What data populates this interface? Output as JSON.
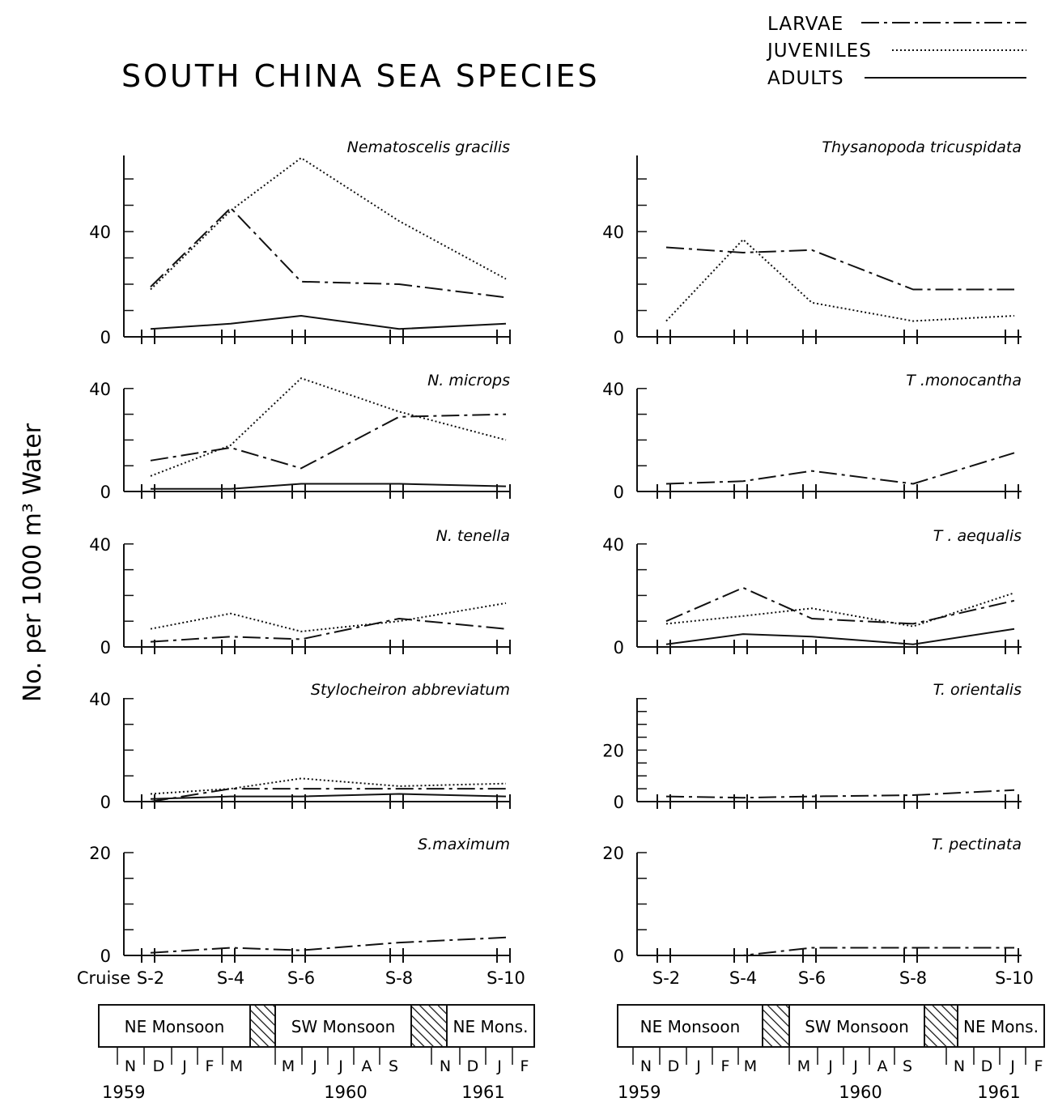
{
  "title": "SOUTH CHINA SEA SPECIES",
  "ylabel": "No. per 1000 m³ Water",
  "legend": [
    {
      "label": "LARVAE",
      "style": "dashdot"
    },
    {
      "label": "JUVENILES",
      "style": "dotted"
    },
    {
      "label": "ADULTS",
      "style": "solid"
    }
  ],
  "cruise_label": "Cruise",
  "cruises": [
    "S-2",
    "S-4",
    "S-6",
    "S-8",
    "S-10"
  ],
  "monsoon_bands": [
    {
      "label": "NE Monsoon",
      "hatched": false
    },
    {
      "label": "",
      "hatched": true
    },
    {
      "label": "SW Monsoon",
      "hatched": false
    },
    {
      "label": "",
      "hatched": true
    },
    {
      "label": "NE Mons.",
      "hatched": false
    }
  ],
  "months": [
    "N",
    "D",
    "J",
    "F",
    "M",
    "M",
    "J",
    "J",
    "A",
    "S",
    "N",
    "D",
    "J",
    "F"
  ],
  "years": [
    "1959",
    "1960",
    "1961"
  ],
  "colors": {
    "ink": "#111111",
    "background": "#ffffff"
  },
  "chart_data": [
    {
      "type": "line",
      "title": "Nematoscelis gracilis",
      "x": [
        "S-2",
        "S-4",
        "S-6",
        "S-8",
        "S-10"
      ],
      "ylim": [
        0,
        70
      ],
      "yticks": [
        0,
        40
      ],
      "series": [
        {
          "name": "LARVAE",
          "values": [
            19,
            49,
            21,
            20,
            15
          ]
        },
        {
          "name": "JUVENILES",
          "values": [
            18,
            48,
            68,
            44,
            22
          ]
        },
        {
          "name": "ADULTS",
          "values": [
            3,
            5,
            8,
            3,
            5
          ]
        }
      ]
    },
    {
      "type": "line",
      "title": "Thysanopoda tricuspidata",
      "x": [
        "S-2",
        "S-4",
        "S-6",
        "S-8",
        "S-10"
      ],
      "ylim": [
        0,
        70
      ],
      "yticks": [
        0,
        40
      ],
      "series": [
        {
          "name": "LARVAE",
          "values": [
            34,
            32,
            33,
            18,
            18
          ]
        },
        {
          "name": "JUVENILES",
          "values": [
            6,
            37,
            13,
            6,
            8
          ]
        }
      ]
    },
    {
      "type": "line",
      "title": "N. microps",
      "x": [
        "S-2",
        "S-4",
        "S-6",
        "S-8",
        "S-10"
      ],
      "ylim": [
        0,
        40
      ],
      "yticks": [
        0,
        40
      ],
      "series": [
        {
          "name": "LARVAE",
          "values": [
            12,
            17,
            9,
            29,
            30
          ]
        },
        {
          "name": "JUVENILES",
          "values": [
            6,
            18,
            44,
            31,
            20
          ]
        },
        {
          "name": "ADULTS",
          "values": [
            1,
            1,
            3,
            3,
            2
          ]
        }
      ]
    },
    {
      "type": "line",
      "title": "T .monocantha",
      "x": [
        "S-2",
        "S-4",
        "S-6",
        "S-8",
        "S-10"
      ],
      "ylim": [
        0,
        40
      ],
      "yticks": [
        0,
        40
      ],
      "series": [
        {
          "name": "LARVAE",
          "values": [
            3,
            4,
            8,
            3,
            15
          ]
        }
      ]
    },
    {
      "type": "line",
      "title": "N. tenella",
      "x": [
        "S-2",
        "S-4",
        "S-6",
        "S-8",
        "S-10"
      ],
      "ylim": [
        0,
        40
      ],
      "yticks": [
        0,
        40
      ],
      "series": [
        {
          "name": "LARVAE",
          "values": [
            2,
            4,
            3,
            11,
            7
          ]
        },
        {
          "name": "JUVENILES",
          "values": [
            7,
            13,
            6,
            10,
            17
          ]
        }
      ]
    },
    {
      "type": "line",
      "title": "T . aequalis",
      "x": [
        "S-2",
        "S-4",
        "S-6",
        "S-8",
        "S-10"
      ],
      "ylim": [
        0,
        40
      ],
      "yticks": [
        0,
        40
      ],
      "series": [
        {
          "name": "LARVAE",
          "values": [
            10,
            23,
            11,
            9,
            18
          ]
        },
        {
          "name": "JUVENILES",
          "values": [
            9,
            12,
            15,
            8,
            21
          ]
        },
        {
          "name": "ADULTS",
          "values": [
            1,
            5,
            4,
            1,
            7
          ]
        }
      ]
    },
    {
      "type": "line",
      "title": "Stylocheiron abbreviatum",
      "x": [
        "S-2",
        "S-4",
        "S-6",
        "S-8",
        "S-10"
      ],
      "ylim": [
        0,
        40
      ],
      "yticks": [
        0,
        40
      ],
      "series": [
        {
          "name": "LARVAE",
          "values": [
            0,
            5,
            5,
            5,
            5
          ]
        },
        {
          "name": "JUVENILES",
          "values": [
            3,
            5,
            9,
            6,
            7
          ]
        },
        {
          "name": "ADULTS",
          "values": [
            1,
            2,
            2,
            3,
            2
          ]
        }
      ]
    },
    {
      "type": "line",
      "title": "T. orientalis",
      "x": [
        "S-2",
        "S-4",
        "S-6",
        "S-8",
        "S-10"
      ],
      "ylim": [
        0,
        20
      ],
      "yticks": [
        0,
        20
      ],
      "series": [
        {
          "name": "LARVAE",
          "values": [
            2,
            1.5,
            2,
            2.5,
            4.5
          ]
        }
      ]
    },
    {
      "type": "line",
      "title": "S.maximum",
      "x": [
        "S-2",
        "S-4",
        "S-6",
        "S-8",
        "S-10"
      ],
      "ylim": [
        0,
        20
      ],
      "yticks": [
        0,
        20
      ],
      "series": [
        {
          "name": "LARVAE",
          "values": [
            0.5,
            1.5,
            1,
            2.5,
            3.5
          ]
        }
      ]
    },
    {
      "type": "line",
      "title": "T. pectinata",
      "x": [
        "S-2",
        "S-4",
        "S-6",
        "S-8",
        "S-10"
      ],
      "ylim": [
        0,
        20
      ],
      "yticks": [
        0,
        20
      ],
      "series": [
        {
          "name": "LARVAE",
          "values": [
            0,
            0,
            1.5,
            1.5,
            1.5
          ]
        }
      ]
    }
  ]
}
